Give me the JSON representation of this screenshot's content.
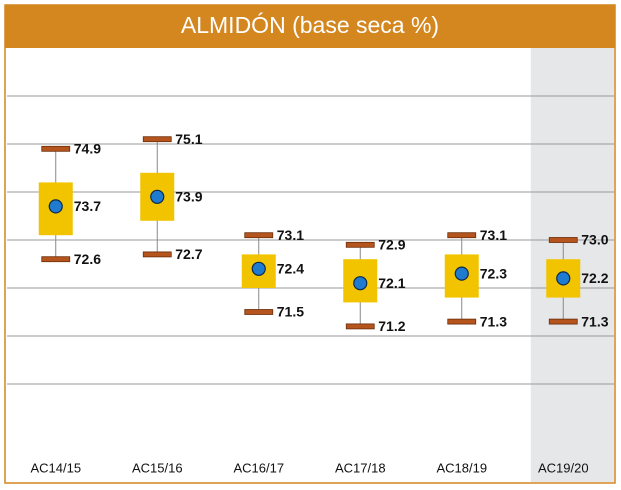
{
  "chart_data": {
    "type": "box",
    "title": "ALMIDÓN (base seca %)",
    "categories": [
      "AC14/15",
      "AC15/16",
      "AC16/17",
      "AC17/18",
      "AC18/19",
      "AC19/20"
    ],
    "max": [
      74.9,
      75.1,
      73.1,
      72.9,
      73.1,
      73.0
    ],
    "max_labels": [
      "74.9",
      "75.1",
      "73.1",
      "72.9",
      "73.1",
      "73.0"
    ],
    "mean": [
      73.7,
      73.9,
      72.4,
      72.1,
      72.3,
      72.2
    ],
    "min": [
      72.6,
      72.7,
      71.5,
      71.2,
      71.3,
      71.3
    ],
    "box_low": [
      73.1,
      73.4,
      72.0,
      71.7,
      71.8,
      71.8
    ],
    "box_high": [
      74.2,
      74.4,
      72.7,
      72.6,
      72.7,
      72.6
    ],
    "ylim": [
      68.5,
      77
    ],
    "yticks": [
      70,
      71,
      72,
      73,
      74,
      75,
      76
    ],
    "grid": true,
    "box_color": "#f2c400",
    "whisker_color": "#b5541c",
    "mean_color": "#1f7bd0",
    "frame_color": "#d4861f",
    "highlight_index": 5,
    "highlight_color": "#e6e7e9"
  }
}
